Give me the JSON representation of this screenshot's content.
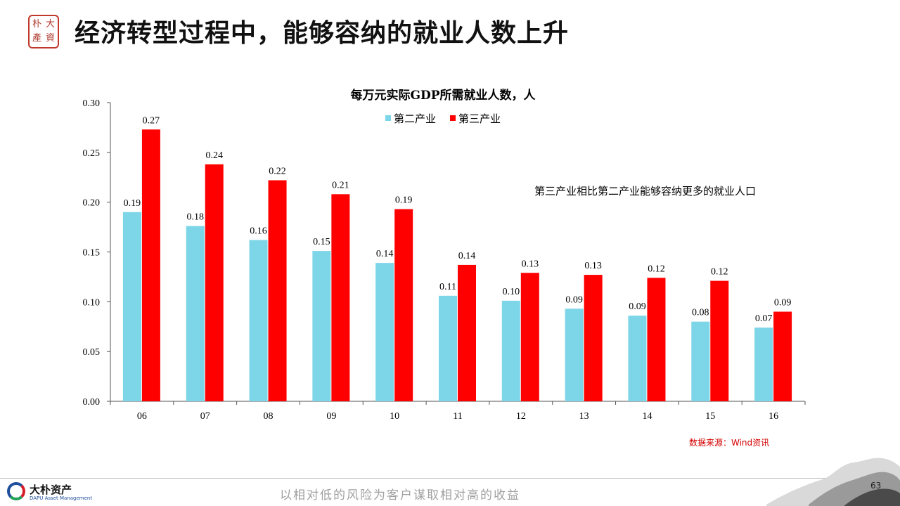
{
  "header": {
    "title": "经济转型过程中，能够容纳的就业人数上升",
    "seal_text": "大朴资产"
  },
  "annotation": "第三产业相比第二产业能够容纳更多的就业人口",
  "source": "数据来源：Wind资讯",
  "footer": {
    "logo_cn": "大朴资产",
    "logo_en": "DAPU Asset Management",
    "slogan": "以相对低的风险为客户谋取相对高的收益",
    "page_number": "63"
  },
  "colors": {
    "secondary_industry": "#7dd6e8",
    "tertiary_industry": "#ff0000",
    "source_text": "#d40000"
  },
  "chart_data": {
    "type": "bar",
    "title": "每万元实际GDP所需就业人数，人",
    "categories": [
      "06",
      "07",
      "08",
      "09",
      "10",
      "11",
      "12",
      "13",
      "14",
      "15",
      "16"
    ],
    "series": [
      {
        "name": "第二产业",
        "values": [
          0.19,
          0.176,
          0.162,
          0.151,
          0.139,
          0.106,
          0.101,
          0.093,
          0.086,
          0.08,
          0.074
        ],
        "labels": [
          "0.19",
          "0.18",
          "0.16",
          "0.15",
          "0.14",
          "0.11",
          "0.10",
          "0.09",
          "0.09",
          "0.08",
          "0.07"
        ]
      },
      {
        "name": "第三产业",
        "values": [
          0.273,
          0.238,
          0.222,
          0.208,
          0.193,
          0.137,
          0.129,
          0.127,
          0.124,
          0.121,
          0.09
        ],
        "labels": [
          "0.27",
          "0.24",
          "0.22",
          "0.21",
          "0.19",
          "0.14",
          "0.13",
          "0.13",
          "0.12",
          "0.12",
          "0.09"
        ]
      }
    ],
    "yticks": [
      "0.00",
      "0.05",
      "0.10",
      "0.15",
      "0.20",
      "0.25",
      "0.30"
    ],
    "ylim": [
      0,
      0.3
    ],
    "grid": false,
    "legend": "top-center"
  }
}
